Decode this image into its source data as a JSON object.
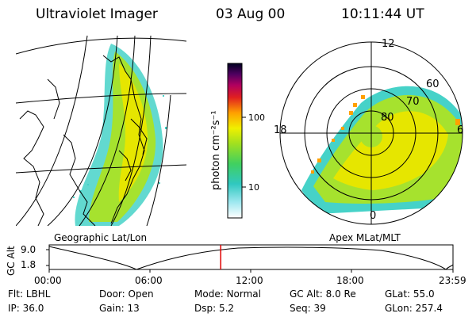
{
  "header": {
    "instrument": "Ultraviolet Imager",
    "date": "03 Aug 00",
    "time": "10:11:44 UT"
  },
  "colorbar": {
    "unit_label": "photon cm⁻²s⁻¹",
    "ticks": [
      "100",
      "10"
    ]
  },
  "polar": {
    "mlt_labels": {
      "top": "12",
      "left": "18",
      "right": "6",
      "bottom": "0"
    },
    "mlat_labels": [
      "60",
      "70",
      "80"
    ],
    "caption": "Apex MLat/MLT"
  },
  "map": {
    "caption": "Geographic Lat/Lon"
  },
  "orbit": {
    "axis_label": "GC Alt",
    "y_ticks": [
      "9.0",
      "1.8"
    ],
    "x_ticks": [
      "00:00",
      "06:00",
      "12:00",
      "18:00",
      "23:59"
    ],
    "current_time_fraction": 0.4248
  },
  "info": {
    "row1": [
      {
        "label": "Flt:",
        "value": "LBHL"
      },
      {
        "label": "Door:",
        "value": "Open"
      },
      {
        "label": "Mode:",
        "value": "Normal"
      },
      {
        "label": "GC Alt:",
        "value": "8.0 Re"
      },
      {
        "label": "GLat:",
        "value": "55.0"
      }
    ],
    "row2": [
      {
        "label": "IP:",
        "value": "36.0"
      },
      {
        "label": "Gain:",
        "value": "13"
      },
      {
        "label": "Dsp:",
        "value": "5.2"
      },
      {
        "label": "Seq:",
        "value": "39"
      },
      {
        "label": "GLon:",
        "value": "257.4"
      }
    ]
  },
  "colors": {
    "aurora_low": "#46d2c8",
    "aurora_mid": "#a6e22e",
    "aurora_high": "#e6e600",
    "time_marker": "#e00000"
  }
}
